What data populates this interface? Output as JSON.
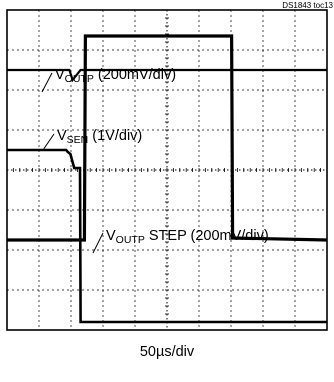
{
  "chart_data": {
    "type": "line",
    "figure_id": "DS1843 toc13",
    "grid": true,
    "grid_divisions": {
      "x": 10,
      "y": 8
    },
    "timebase": "50µs/div",
    "series": [
      {
        "name": "VOUTP (200mV/div)",
        "label_main": "V",
        "label_sub": "OUTP",
        "label_rest": " (200mV/div)",
        "points": [
          [
            0,
            6.5
          ],
          [
            1.95,
            6.5
          ],
          [
            2.05,
            6.25
          ],
          [
            2.3,
            6.5
          ],
          [
            10,
            6.5
          ]
        ]
      },
      {
        "name": "VSEN (1V/div)",
        "label_main": "V",
        "label_sub": "SEN",
        "label_rest": " (1V/div)",
        "points": [
          [
            0,
            4.5
          ],
          [
            1.85,
            4.5
          ],
          [
            1.9,
            4.45
          ],
          [
            1.98,
            4.4
          ],
          [
            2.1,
            4.05
          ],
          [
            2.28,
            4.05
          ],
          [
            2.3,
            0.2
          ],
          [
            10,
            0.2
          ]
        ]
      },
      {
        "name": "VOUTP STEP (200mV/div)",
        "label_main": "V",
        "label_sub": "OUTP",
        "label_rest": " STEP (200mV/div)",
        "points": [
          [
            0,
            2.25
          ],
          [
            2.42,
            2.25
          ],
          [
            2.45,
            7.35
          ],
          [
            7.02,
            7.35
          ],
          [
            7.05,
            2.3
          ],
          [
            10,
            2.25
          ]
        ]
      }
    ]
  }
}
